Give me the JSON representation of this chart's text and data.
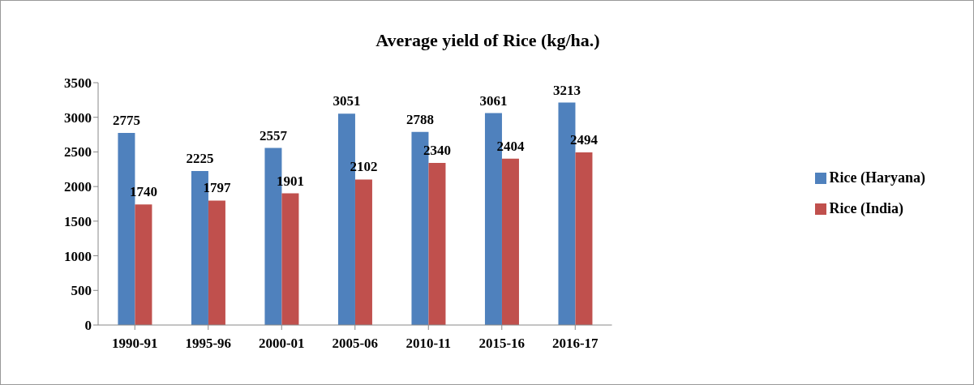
{
  "chart_data": {
    "type": "bar",
    "title": "Average yield of Rice (kg/ha.)",
    "categories": [
      "1990-91",
      "1995-96",
      "2000-01",
      "2005-06",
      "2010-11",
      "2015-16",
      "2016-17"
    ],
    "series": [
      {
        "name": "Rice (Haryana)",
        "color": "#4f81bd",
        "values": [
          2775,
          2225,
          2557,
          3051,
          2788,
          3061,
          3213
        ]
      },
      {
        "name": "Rice (India)",
        "color": "#c0504d",
        "values": [
          1740,
          1797,
          1901,
          2102,
          2340,
          2404,
          2494
        ]
      }
    ],
    "ylim": [
      0,
      3500
    ],
    "yticks": [
      0,
      500,
      1000,
      1500,
      2000,
      2500,
      3000,
      3500
    ],
    "grid": false,
    "legend": "right",
    "data_labels": true
  }
}
